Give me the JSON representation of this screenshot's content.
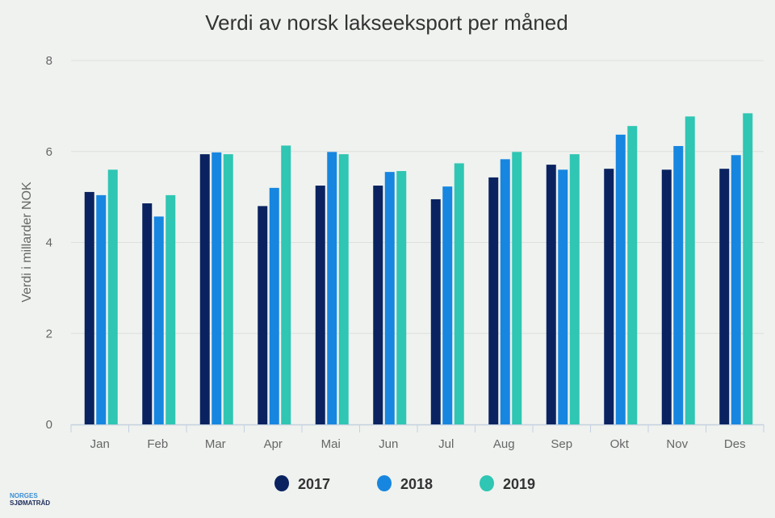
{
  "chart_data": {
    "type": "bar",
    "title": "Verdi av norsk lakseeksport per måned",
    "xlabel": "",
    "ylabel": "Verdi i millarder NOK",
    "ylim": [
      0,
      8
    ],
    "yticks": [
      0,
      2,
      4,
      6,
      8
    ],
    "grid": true,
    "legend_position": "bottom",
    "categories": [
      "Jan",
      "Feb",
      "Mar",
      "Apr",
      "Mai",
      "Jun",
      "Jul",
      "Aug",
      "Sep",
      "Okt",
      "Nov",
      "Des"
    ],
    "series": [
      {
        "name": "2017",
        "color": "#0a2360",
        "values": [
          5.11,
          4.86,
          5.94,
          4.8,
          5.25,
          5.25,
          4.95,
          5.43,
          5.71,
          5.62,
          5.6,
          5.62
        ]
      },
      {
        "name": "2018",
        "color": "#1786e0",
        "values": [
          5.04,
          4.57,
          5.98,
          5.2,
          5.99,
          5.55,
          5.23,
          5.83,
          5.6,
          6.37,
          6.12,
          5.92
        ]
      },
      {
        "name": "2019",
        "color": "#2fc6b3",
        "values": [
          5.6,
          5.04,
          5.94,
          6.13,
          5.94,
          5.57,
          5.74,
          5.99,
          5.94,
          6.56,
          6.77,
          6.84
        ]
      }
    ]
  },
  "logo": {
    "line1": "NORGES",
    "line2": "SJØMATRÅD"
  }
}
